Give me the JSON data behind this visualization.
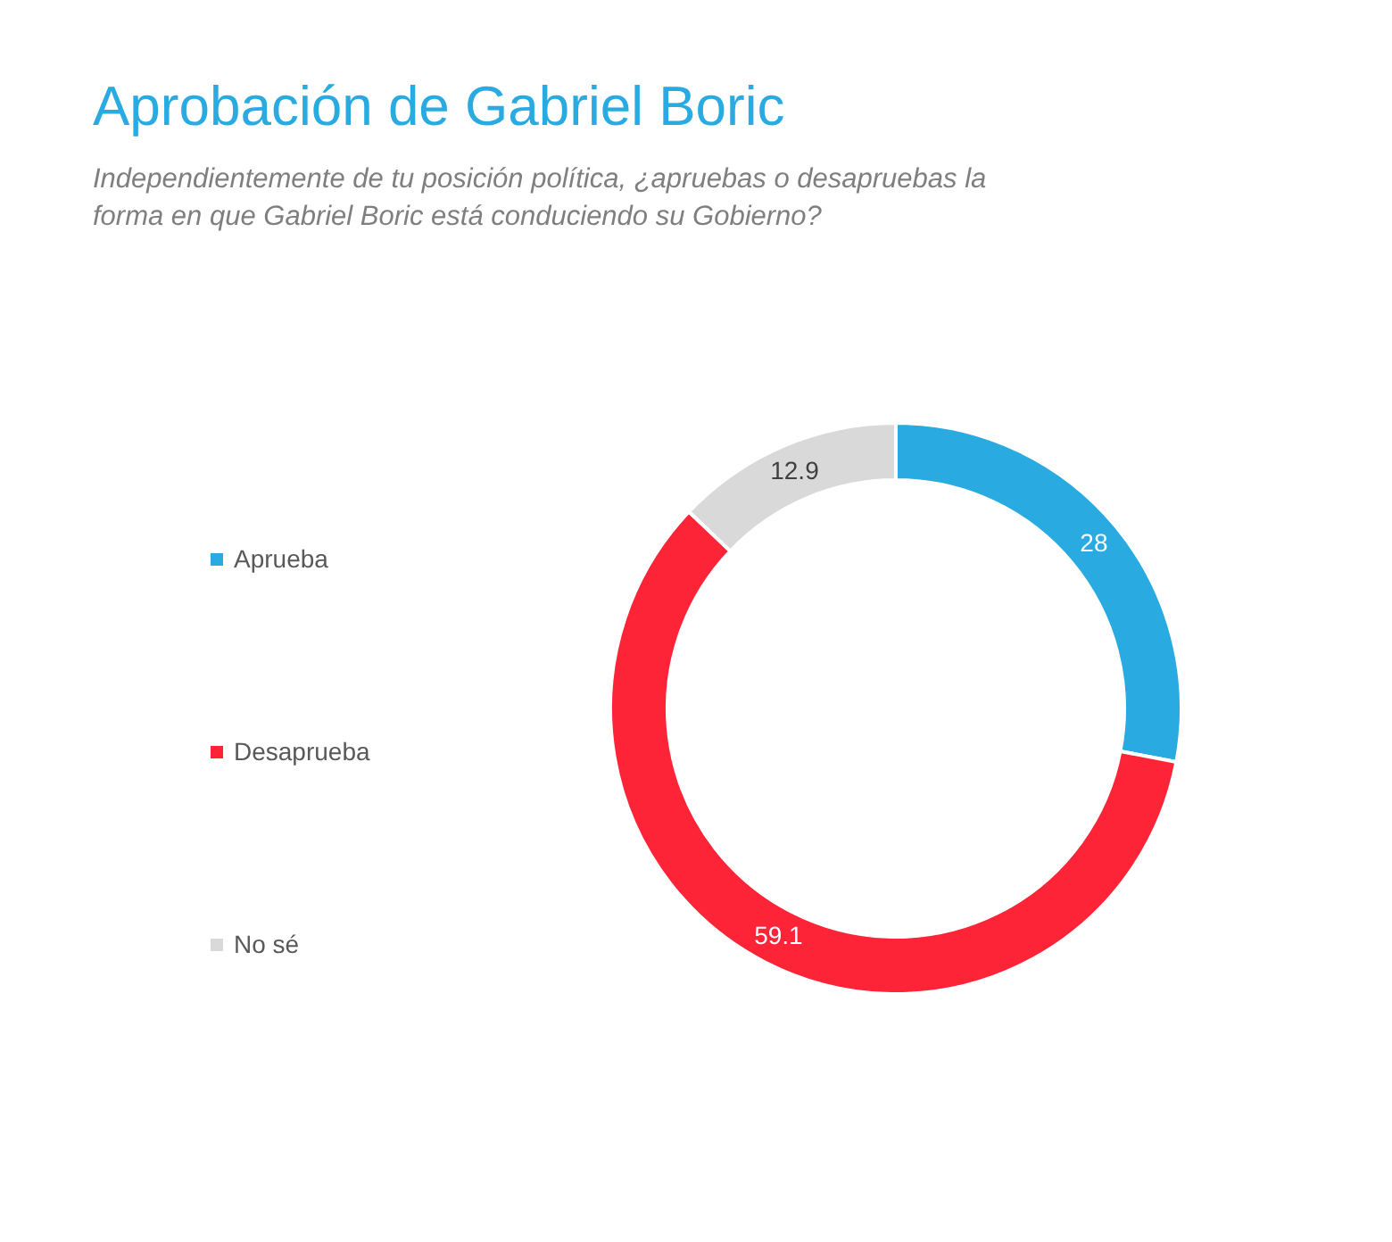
{
  "chart_data": {
    "type": "donut",
    "title": "Aprobación de Gabriel Boric",
    "subtitle": "Independientemente de tu posición política, ¿apruebas o desapruebas la forma en que Gabriel Boric está conduciendo su Gobierno?",
    "categories": [
      "Aprueba",
      "Desaprueba",
      "No sé"
    ],
    "values": [
      28,
      59.1,
      12.9
    ],
    "colors": [
      "#29abe2",
      "#fe2437",
      "#d9d9d9"
    ],
    "data_labels": true,
    "legend": "left"
  }
}
